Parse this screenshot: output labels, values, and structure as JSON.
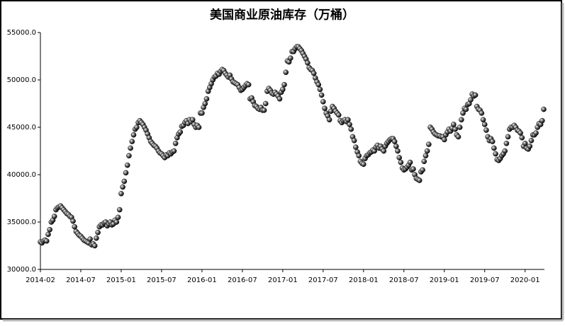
{
  "chart_data": {
    "type": "scatter-line",
    "title": "美国商业原油库存（万桶）",
    "categories": [
      "2014-02",
      null,
      null,
      null,
      null,
      null,
      null,
      null,
      null,
      null,
      null,
      null,
      null,
      null,
      null,
      null,
      null,
      null,
      null,
      null,
      null,
      null,
      null,
      null,
      null,
      null,
      "2014-07",
      null,
      null,
      null,
      null,
      null,
      null,
      null,
      null,
      null,
      null,
      null,
      null,
      null,
      null,
      null,
      null,
      null,
      null,
      null,
      null,
      null,
      null,
      null,
      null,
      null,
      "2015-01",
      null,
      null,
      null,
      null,
      null,
      null,
      null,
      null,
      null,
      null,
      null,
      null,
      null,
      null,
      null,
      null,
      null,
      null,
      null,
      null,
      null,
      null,
      null,
      null,
      null,
      "2015-07",
      null,
      null,
      null,
      null,
      null,
      null,
      null,
      null,
      null,
      null,
      null,
      null,
      null,
      null,
      null,
      null,
      null,
      null,
      null,
      null,
      null,
      null,
      null,
      null,
      null,
      "2016-01",
      null,
      null,
      null,
      null,
      null,
      null,
      null,
      null,
      null,
      null,
      null,
      null,
      null,
      null,
      null,
      null,
      null,
      null,
      null,
      null,
      null,
      null,
      null,
      null,
      null,
      "2016-07",
      null,
      null,
      null,
      null,
      null,
      null,
      null,
      null,
      null,
      null,
      null,
      null,
      null,
      null,
      null,
      null,
      null,
      null,
      null,
      null,
      null,
      null,
      null,
      null,
      null,
      "2017-01",
      null,
      null,
      null,
      null,
      null,
      null,
      null,
      null,
      null,
      null,
      null,
      null,
      null,
      null,
      null,
      null,
      null,
      null,
      null,
      null,
      null,
      null,
      null,
      null,
      null,
      "2017-07",
      null,
      null,
      null,
      null,
      null,
      null,
      null,
      null,
      null,
      null,
      null,
      null,
      null,
      null,
      null,
      null,
      null,
      null,
      null,
      null,
      null,
      null,
      null,
      null,
      null,
      "2018-01",
      null,
      null,
      null,
      null,
      null,
      null,
      null,
      null,
      null,
      null,
      null,
      null,
      null,
      null,
      null,
      null,
      null,
      null,
      null,
      null,
      null,
      null,
      null,
      null,
      null,
      "2018-07",
      null,
      null,
      null,
      null,
      null,
      null,
      null,
      null,
      null,
      null,
      null,
      null,
      null,
      null,
      null,
      null,
      null,
      null,
      null,
      null,
      null,
      null,
      null,
      null,
      null,
      "2019-01",
      null,
      null,
      null,
      null,
      null,
      null,
      null,
      null,
      null,
      null,
      null,
      null,
      null,
      null,
      null,
      null,
      null,
      null,
      null,
      null,
      null,
      null,
      null,
      null,
      null,
      "2019-07",
      null,
      null,
      null,
      null,
      null,
      null,
      null,
      null,
      null,
      null,
      null,
      null,
      null,
      null,
      null,
      null,
      null,
      null,
      null,
      null,
      null,
      null,
      null,
      null,
      null,
      "2020-01",
      null,
      null,
      null,
      null,
      null,
      null,
      null,
      null,
      null,
      null,
      null,
      null
    ],
    "values": [
      32900,
      32800,
      33000,
      33100,
      33000,
      33700,
      34200,
      35000,
      35200,
      35600,
      36300,
      36500,
      36600,
      36700,
      36500,
      36300,
      36100,
      35900,
      35800,
      35600,
      35500,
      35100,
      34500,
      34000,
      33800,
      33600,
      33500,
      33300,
      33100,
      33000,
      32900,
      32800,
      33200,
      32600,
      32700,
      32500,
      33300,
      33900,
      34500,
      34700,
      34700,
      34900,
      35000,
      34600,
      34800,
      35000,
      34700,
      34800,
      35200,
      35000,
      35500,
      36300,
      38000,
      38700,
      39300,
      40200,
      41000,
      42000,
      42800,
      43500,
      44200,
      44800,
      45000,
      45500,
      45700,
      45500,
      45300,
      45000,
      44700,
      44300,
      43900,
      43500,
      43300,
      43100,
      43000,
      42800,
      42500,
      42300,
      42200,
      42000,
      41800,
      42100,
      42000,
      42300,
      42200,
      42400,
      42500,
      43300,
      43900,
      44300,
      44500,
      45100,
      45200,
      45500,
      45700,
      45400,
      45800,
      45600,
      45800,
      45300,
      45000,
      45200,
      45000,
      46500,
      46500,
      47100,
      47500,
      48000,
      48800,
      49200,
      49600,
      50000,
      50300,
      50400,
      50700,
      50600,
      50900,
      51100,
      51000,
      50700,
      50500,
      50300,
      50500,
      50100,
      49800,
      49700,
      49600,
      49500,
      49200,
      48900,
      49000,
      49200,
      49400,
      49600,
      49500,
      48000,
      48100,
      47700,
      47300,
      47200,
      47000,
      46900,
      47100,
      46800,
      46800,
      47500,
      48800,
      49100,
      48900,
      48600,
      48500,
      48700,
      48500,
      48300,
      48000,
      48700,
      49000,
      49500,
      50800,
      52000,
      51900,
      52300,
      53000,
      53000,
      53300,
      53500,
      53500,
      53300,
      53100,
      52800,
      52500,
      52200,
      51800,
      51300,
      51100,
      51000,
      50700,
      50200,
      49800,
      49500,
      49000,
      48400,
      47700,
      47000,
      46500,
      46200,
      45800,
      46700,
      47200,
      47000,
      46700,
      46500,
      46300,
      45700,
      45500,
      45700,
      45800,
      45600,
      45800,
      45300,
      44800,
      44000,
      43600,
      42900,
      42400,
      42000,
      41400,
      41200,
      41100,
      41700,
      42000,
      42100,
      42300,
      42400,
      42600,
      42500,
      42900,
      43100,
      42800,
      43000,
      42700,
      42500,
      43000,
      43300,
      43500,
      43700,
      43800,
      43800,
      43500,
      43000,
      42500,
      41800,
      41300,
      40700,
      40500,
      40600,
      40800,
      41000,
      41300,
      40500,
      40600,
      40000,
      39600,
      39500,
      39400,
      40300,
      40500,
      41400,
      42000,
      42500,
      43200,
      45000,
      44800,
      44500,
      44300,
      44200,
      44100,
      44100,
      44000,
      44000,
      43700,
      44200,
      44500,
      44800,
      44600,
      44900,
      45300,
      44800,
      44200,
      44000,
      45000,
      45800,
      46500,
      47000,
      46900,
      47400,
      47500,
      47900,
      48500,
      48300,
      48400,
      47200,
      46900,
      46800,
      46500,
      45800,
      45300,
      44700,
      44000,
      43600,
      43800,
      43500,
      42800,
      42200,
      41600,
      41500,
      41700,
      42000,
      42200,
      42500,
      43300,
      44000,
      44800,
      45000,
      45000,
      45200,
      45000,
      44700,
      44600,
      44400,
      43900,
      43000,
      43300,
      42800,
      42700,
      43000,
      43600,
      44200,
      44200,
      44400,
      45000,
      45400,
      45300,
      45700,
      46900
    ],
    "color": "#000000",
    "ylim": [
      30000,
      55000
    ],
    "yticks": [
      {
        "value": 30000,
        "label": "30000.0"
      },
      {
        "value": 35000,
        "label": "35000.0"
      },
      {
        "value": 40000,
        "label": "40000.0"
      },
      {
        "value": 45000,
        "label": "45000.0"
      },
      {
        "value": 50000,
        "label": "50000.0"
      },
      {
        "value": 55000,
        "label": "55000.0"
      }
    ],
    "grid": false
  }
}
